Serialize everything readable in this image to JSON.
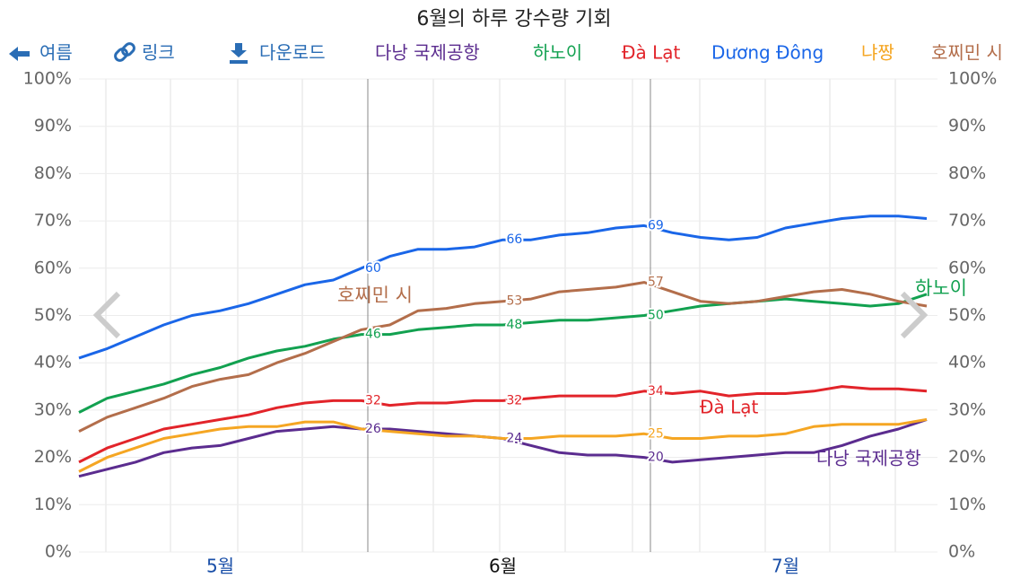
{
  "toolbar": {
    "back": "여름",
    "link": "링크",
    "download": "다운로드"
  },
  "chart_data": {
    "type": "line",
    "title": "6월의 하루 강수량 기회",
    "categories": [
      null,
      null,
      null,
      null,
      null,
      "5월",
      null,
      null,
      null,
      null,
      null,
      null,
      null,
      null,
      null,
      "6월",
      null,
      null,
      null,
      null,
      null,
      null,
      null,
      null,
      null,
      "7월",
      null,
      null,
      null,
      null,
      null
    ],
    "series": [
      {
        "name": "다낭 국제공항",
        "color": "#5b2c8f",
        "values": [
          16,
          17.5,
          19,
          21,
          22,
          22.5,
          24,
          25.5,
          26,
          26.5,
          26,
          26,
          25.5,
          25,
          24.5,
          24,
          22.5,
          21,
          20.5,
          20.5,
          20,
          19,
          19.5,
          20,
          20.5,
          21,
          21,
          22.5,
          24.5,
          26,
          28
        ]
      },
      {
        "name": "하노이",
        "color": "#12a150",
        "values": [
          29.5,
          32.5,
          34,
          35.5,
          37.5,
          39,
          41,
          42.5,
          43.5,
          45,
          46,
          46,
          47,
          47.5,
          48,
          48,
          48.5,
          49,
          49,
          49.5,
          50,
          51,
          52,
          52.5,
          53,
          53.5,
          53,
          52.5,
          52,
          52.5,
          54.5
        ]
      },
      {
        "name": "Đà Lạt",
        "color": "#e2242a",
        "values": [
          19,
          22,
          24,
          26,
          27,
          28,
          29,
          30.5,
          31.5,
          32,
          32,
          31,
          31.5,
          31.5,
          32,
          32,
          32.5,
          33,
          33,
          33,
          34,
          33.5,
          34,
          33,
          33.5,
          33.5,
          34,
          35,
          34.5,
          34.5,
          34
        ]
      },
      {
        "name": "Dương Đông",
        "color": "#1a66e8",
        "values": [
          41,
          43,
          45.5,
          48,
          50,
          51,
          52.5,
          54.5,
          56.5,
          57.5,
          60,
          62.5,
          64,
          64,
          64.5,
          66,
          66,
          67,
          67.5,
          68.5,
          69,
          67.5,
          66.5,
          66,
          66.5,
          68.5,
          69.5,
          70.5,
          71,
          71,
          70.5
        ]
      },
      {
        "name": "냐짱",
        "color": "#f5a623",
        "values": [
          17,
          20,
          22,
          24,
          25,
          26,
          26.5,
          26.5,
          27.5,
          27.5,
          26,
          25.5,
          25,
          24.5,
          24.5,
          24,
          24,
          24.5,
          24.5,
          24.5,
          25,
          24,
          24,
          24.5,
          24.5,
          25,
          26.5,
          27,
          27,
          27,
          28
        ]
      },
      {
        "name": "호찌민 시",
        "color": "#b36e4b",
        "values": [
          25.5,
          28.5,
          30.5,
          32.5,
          35,
          36.5,
          37.5,
          40,
          42,
          44.5,
          47,
          48,
          51,
          51.5,
          52.5,
          53,
          53.5,
          55,
          55.5,
          56,
          57,
          55,
          53,
          52.5,
          53,
          54,
          55,
          55.5,
          54.5,
          53,
          52
        ]
      }
    ],
    "ylim": [
      0,
      100
    ],
    "yticks": [
      {
        "value": 0,
        "label": "0%"
      },
      {
        "value": 10,
        "label": "10%"
      },
      {
        "value": 20,
        "label": "20%"
      },
      {
        "value": 30,
        "label": "30%"
      },
      {
        "value": 40,
        "label": "40%"
      },
      {
        "value": 50,
        "label": "50%"
      },
      {
        "value": 60,
        "label": "60%"
      },
      {
        "value": 70,
        "label": "70%"
      },
      {
        "value": 80,
        "label": "80%"
      },
      {
        "value": 90,
        "label": "90%"
      },
      {
        "value": 100,
        "label": "100%"
      }
    ],
    "grid": true
  }
}
